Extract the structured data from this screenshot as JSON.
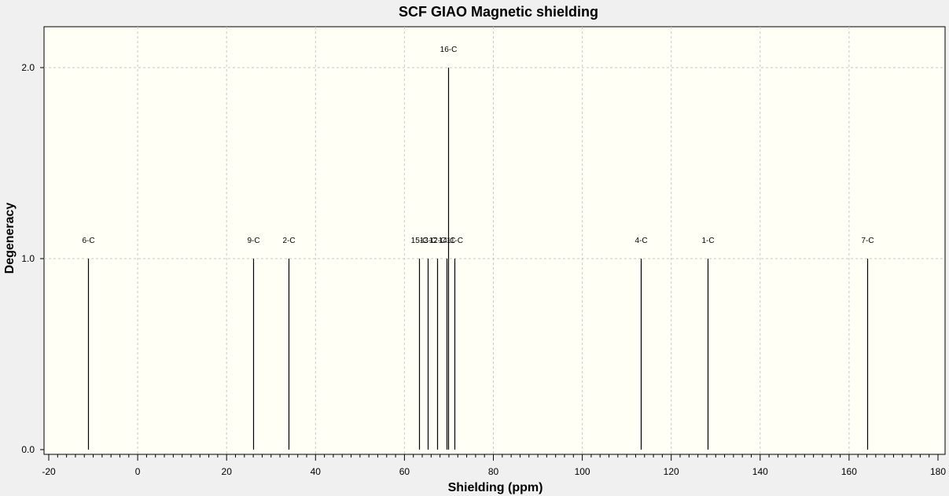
{
  "chart_data": {
    "type": "bar",
    "title": "SCF GIAO Magnetic shielding",
    "xlabel": "Shielding (ppm)",
    "ylabel": "Degeneracy",
    "xlim": [
      -20,
      180
    ],
    "ylim": [
      0,
      2.2
    ],
    "x_ticks": [
      "-20",
      "0",
      "20",
      "40",
      "60",
      "80",
      "100",
      "120",
      "140",
      "160",
      "180"
    ],
    "y_ticks": [
      "0.0",
      "1.0",
      "2.0"
    ],
    "grid": true,
    "background_color": "#fffff5",
    "line_color": "#000000",
    "peaks": [
      {
        "label": "6-C",
        "x": -11.1,
        "y": 1
      },
      {
        "label": "9-C",
        "x": 25.9,
        "y": 1
      },
      {
        "label": "2-C",
        "x": 34.0,
        "y": 1
      },
      {
        "label": "15-C",
        "x": 63.3,
        "y": 1
      },
      {
        "label": "13-C",
        "x": 65.2,
        "y": 1
      },
      {
        "label": "12-C",
        "x": 67.3,
        "y": 1
      },
      {
        "label": "14-C",
        "x": 69.4,
        "y": 1
      },
      {
        "label": "16-C",
        "x": 69.8,
        "y": 2
      },
      {
        "label": "11-C",
        "x": 71.2,
        "y": 1
      },
      {
        "label": "4-C",
        "x": 113.1,
        "y": 1
      },
      {
        "label": "1-C",
        "x": 128.1,
        "y": 1
      },
      {
        "label": "7-C",
        "x": 164.0,
        "y": 1
      }
    ]
  }
}
